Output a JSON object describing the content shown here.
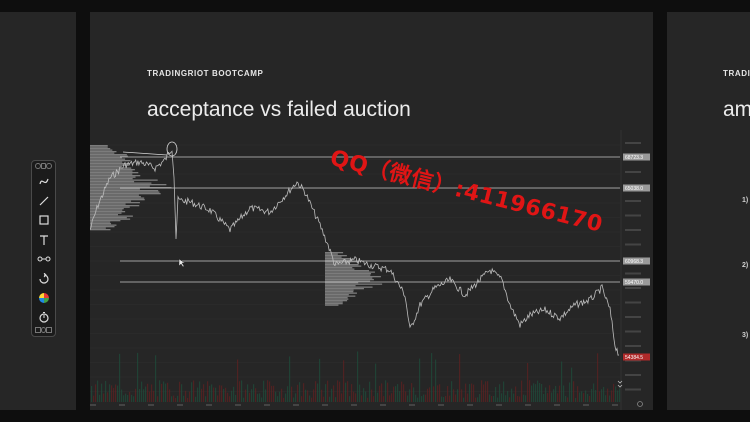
{
  "slides": {
    "main": {
      "kicker": "TRADINGRIOT BOOTCAMP",
      "title": "acceptance vs failed auction"
    },
    "right": {
      "kicker": "TRADI",
      "title": "am",
      "list_numbers": [
        "1)",
        "2)",
        "3)"
      ]
    }
  },
  "chart": {
    "price_labels": [
      {
        "text": "68723.3",
        "color": "#9a9a9a"
      },
      {
        "text": "65038.0",
        "color": "#9a9a9a"
      },
      {
        "text": "60968.3",
        "color": "#9a9a9a"
      },
      {
        "text": "59470.0",
        "color": "#9a9a9a"
      },
      {
        "text": "54384.5",
        "color": "#b02a2a"
      }
    ]
  },
  "toolbar": {
    "tools": [
      "trend-curve-icon",
      "line-icon",
      "rectangle-icon",
      "text-icon",
      "measure-icon",
      "loop-icon",
      "color-wheel-icon",
      "timer-icon"
    ]
  },
  "watermark": "QQ（微信）:411966170"
}
